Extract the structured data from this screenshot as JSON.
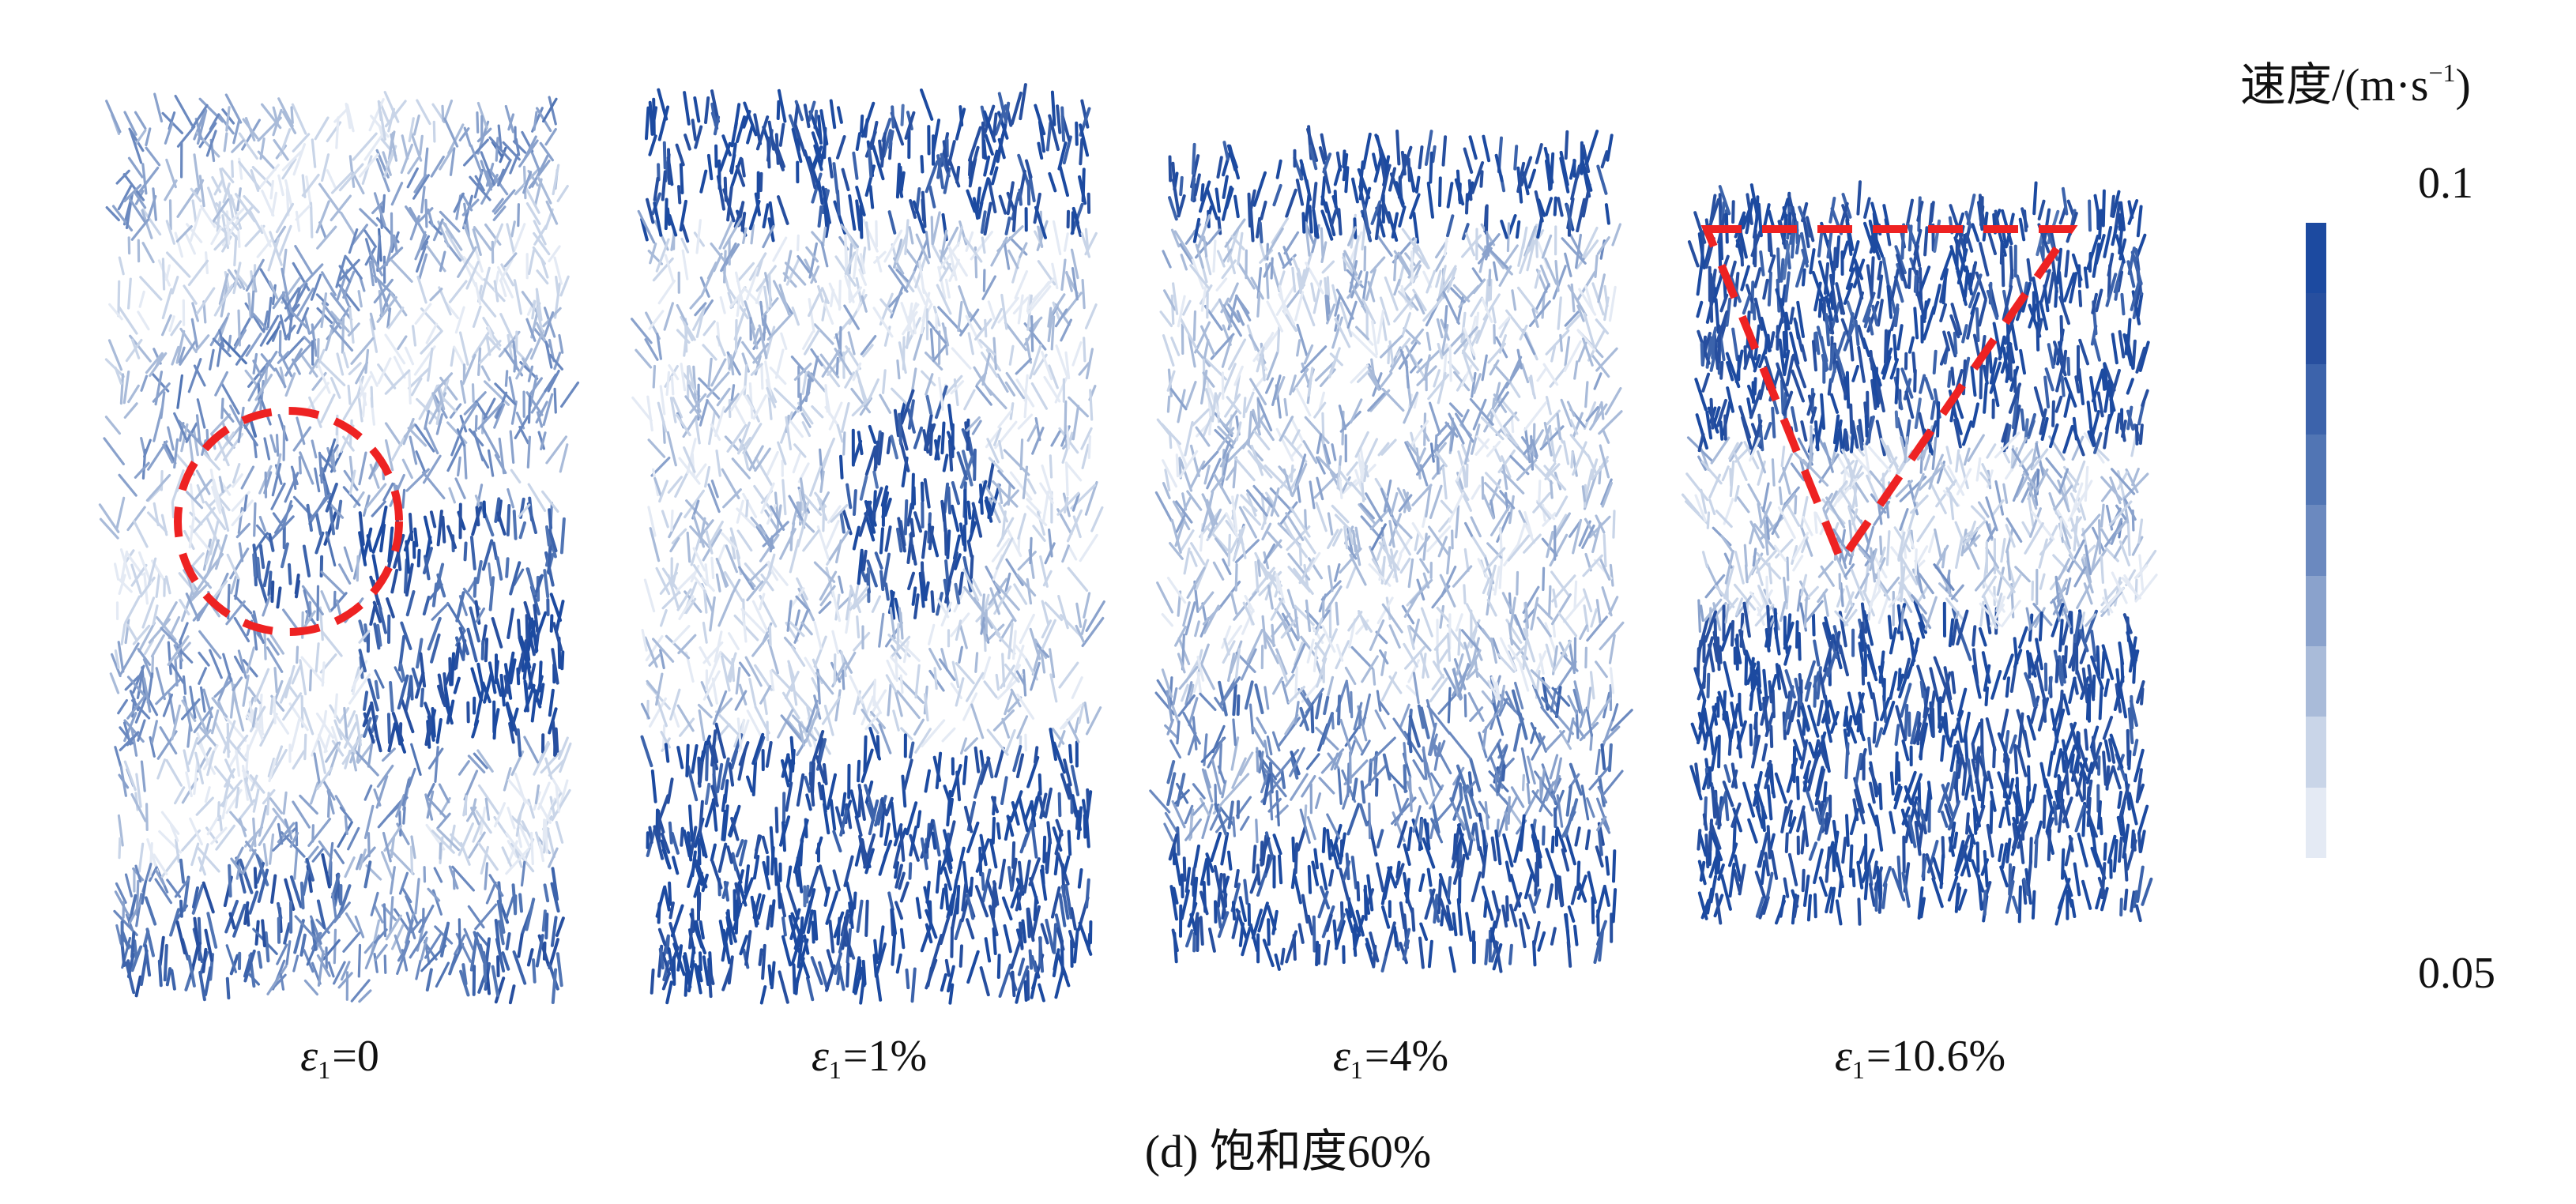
{
  "panels": [
    {
      "eps_sub": "1",
      "eps_value": "=0"
    },
    {
      "eps_sub": "1",
      "eps_value": "=1%"
    },
    {
      "eps_sub": "1",
      "eps_value": "=4%"
    },
    {
      "eps_sub": "1",
      "eps_value": "=10.6%"
    }
  ],
  "caption": "(d) 饱和度60%",
  "colorbar": {
    "title": "速度/(m·s",
    "title_sup": "−1",
    "title_close": ")",
    "max_label": "0.1",
    "min_label": "0.05",
    "colors": [
      "#1c4aa0",
      "#274f9f",
      "#3c63ab",
      "#5175b4",
      "#6b89bf",
      "#8aa2cc",
      "#a9bbd9",
      "#c9d5e8",
      "#e4eaf4"
    ]
  },
  "annotation_colors": {
    "dash": "#ee2222",
    "arrow_dark": "#1c4aa0",
    "arrow_light": "#dbe4f1"
  }
}
